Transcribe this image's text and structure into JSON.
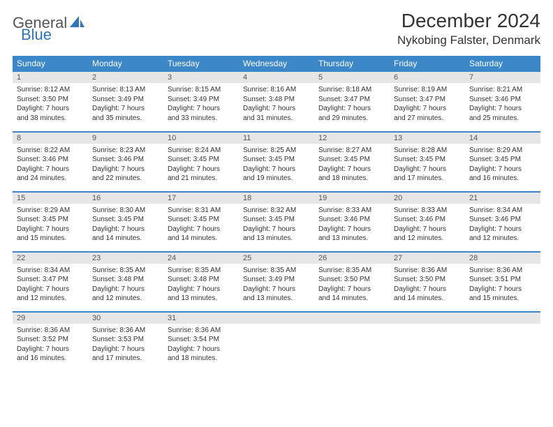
{
  "logo": {
    "general": "General",
    "blue": "Blue"
  },
  "header": {
    "title": "December 2024",
    "location": "Nykobing Falster, Denmark"
  },
  "colors": {
    "header_bg": "#3b87c8",
    "header_text": "#ffffff",
    "daynum_bg": "#e6e6e6",
    "daynum_text": "#555555",
    "body_text": "#333333",
    "rule": "#3b87c8",
    "logo_blue": "#2f76bb",
    "logo_gray": "#555555"
  },
  "weekdays": [
    "Sunday",
    "Monday",
    "Tuesday",
    "Wednesday",
    "Thursday",
    "Friday",
    "Saturday"
  ],
  "weeks": [
    [
      {
        "n": "1",
        "sr": "Sunrise: 8:12 AM",
        "ss": "Sunset: 3:50 PM",
        "d1": "Daylight: 7 hours",
        "d2": "and 38 minutes."
      },
      {
        "n": "2",
        "sr": "Sunrise: 8:13 AM",
        "ss": "Sunset: 3:49 PM",
        "d1": "Daylight: 7 hours",
        "d2": "and 35 minutes."
      },
      {
        "n": "3",
        "sr": "Sunrise: 8:15 AM",
        "ss": "Sunset: 3:49 PM",
        "d1": "Daylight: 7 hours",
        "d2": "and 33 minutes."
      },
      {
        "n": "4",
        "sr": "Sunrise: 8:16 AM",
        "ss": "Sunset: 3:48 PM",
        "d1": "Daylight: 7 hours",
        "d2": "and 31 minutes."
      },
      {
        "n": "5",
        "sr": "Sunrise: 8:18 AM",
        "ss": "Sunset: 3:47 PM",
        "d1": "Daylight: 7 hours",
        "d2": "and 29 minutes."
      },
      {
        "n": "6",
        "sr": "Sunrise: 8:19 AM",
        "ss": "Sunset: 3:47 PM",
        "d1": "Daylight: 7 hours",
        "d2": "and 27 minutes."
      },
      {
        "n": "7",
        "sr": "Sunrise: 8:21 AM",
        "ss": "Sunset: 3:46 PM",
        "d1": "Daylight: 7 hours",
        "d2": "and 25 minutes."
      }
    ],
    [
      {
        "n": "8",
        "sr": "Sunrise: 8:22 AM",
        "ss": "Sunset: 3:46 PM",
        "d1": "Daylight: 7 hours",
        "d2": "and 24 minutes."
      },
      {
        "n": "9",
        "sr": "Sunrise: 8:23 AM",
        "ss": "Sunset: 3:46 PM",
        "d1": "Daylight: 7 hours",
        "d2": "and 22 minutes."
      },
      {
        "n": "10",
        "sr": "Sunrise: 8:24 AM",
        "ss": "Sunset: 3:45 PM",
        "d1": "Daylight: 7 hours",
        "d2": "and 21 minutes."
      },
      {
        "n": "11",
        "sr": "Sunrise: 8:25 AM",
        "ss": "Sunset: 3:45 PM",
        "d1": "Daylight: 7 hours",
        "d2": "and 19 minutes."
      },
      {
        "n": "12",
        "sr": "Sunrise: 8:27 AM",
        "ss": "Sunset: 3:45 PM",
        "d1": "Daylight: 7 hours",
        "d2": "and 18 minutes."
      },
      {
        "n": "13",
        "sr": "Sunrise: 8:28 AM",
        "ss": "Sunset: 3:45 PM",
        "d1": "Daylight: 7 hours",
        "d2": "and 17 minutes."
      },
      {
        "n": "14",
        "sr": "Sunrise: 8:29 AM",
        "ss": "Sunset: 3:45 PM",
        "d1": "Daylight: 7 hours",
        "d2": "and 16 minutes."
      }
    ],
    [
      {
        "n": "15",
        "sr": "Sunrise: 8:29 AM",
        "ss": "Sunset: 3:45 PM",
        "d1": "Daylight: 7 hours",
        "d2": "and 15 minutes."
      },
      {
        "n": "16",
        "sr": "Sunrise: 8:30 AM",
        "ss": "Sunset: 3:45 PM",
        "d1": "Daylight: 7 hours",
        "d2": "and 14 minutes."
      },
      {
        "n": "17",
        "sr": "Sunrise: 8:31 AM",
        "ss": "Sunset: 3:45 PM",
        "d1": "Daylight: 7 hours",
        "d2": "and 14 minutes."
      },
      {
        "n": "18",
        "sr": "Sunrise: 8:32 AM",
        "ss": "Sunset: 3:45 PM",
        "d1": "Daylight: 7 hours",
        "d2": "and 13 minutes."
      },
      {
        "n": "19",
        "sr": "Sunrise: 8:33 AM",
        "ss": "Sunset: 3:46 PM",
        "d1": "Daylight: 7 hours",
        "d2": "and 13 minutes."
      },
      {
        "n": "20",
        "sr": "Sunrise: 8:33 AM",
        "ss": "Sunset: 3:46 PM",
        "d1": "Daylight: 7 hours",
        "d2": "and 12 minutes."
      },
      {
        "n": "21",
        "sr": "Sunrise: 8:34 AM",
        "ss": "Sunset: 3:46 PM",
        "d1": "Daylight: 7 hours",
        "d2": "and 12 minutes."
      }
    ],
    [
      {
        "n": "22",
        "sr": "Sunrise: 8:34 AM",
        "ss": "Sunset: 3:47 PM",
        "d1": "Daylight: 7 hours",
        "d2": "and 12 minutes."
      },
      {
        "n": "23",
        "sr": "Sunrise: 8:35 AM",
        "ss": "Sunset: 3:48 PM",
        "d1": "Daylight: 7 hours",
        "d2": "and 12 minutes."
      },
      {
        "n": "24",
        "sr": "Sunrise: 8:35 AM",
        "ss": "Sunset: 3:48 PM",
        "d1": "Daylight: 7 hours",
        "d2": "and 13 minutes."
      },
      {
        "n": "25",
        "sr": "Sunrise: 8:35 AM",
        "ss": "Sunset: 3:49 PM",
        "d1": "Daylight: 7 hours",
        "d2": "and 13 minutes."
      },
      {
        "n": "26",
        "sr": "Sunrise: 8:35 AM",
        "ss": "Sunset: 3:50 PM",
        "d1": "Daylight: 7 hours",
        "d2": "and 14 minutes."
      },
      {
        "n": "27",
        "sr": "Sunrise: 8:36 AM",
        "ss": "Sunset: 3:50 PM",
        "d1": "Daylight: 7 hours",
        "d2": "and 14 minutes."
      },
      {
        "n": "28",
        "sr": "Sunrise: 8:36 AM",
        "ss": "Sunset: 3:51 PM",
        "d1": "Daylight: 7 hours",
        "d2": "and 15 minutes."
      }
    ],
    [
      {
        "n": "29",
        "sr": "Sunrise: 8:36 AM",
        "ss": "Sunset: 3:52 PM",
        "d1": "Daylight: 7 hours",
        "d2": "and 16 minutes."
      },
      {
        "n": "30",
        "sr": "Sunrise: 8:36 AM",
        "ss": "Sunset: 3:53 PM",
        "d1": "Daylight: 7 hours",
        "d2": "and 17 minutes."
      },
      {
        "n": "31",
        "sr": "Sunrise: 8:36 AM",
        "ss": "Sunset: 3:54 PM",
        "d1": "Daylight: 7 hours",
        "d2": "and 18 minutes."
      },
      null,
      null,
      null,
      null
    ]
  ]
}
